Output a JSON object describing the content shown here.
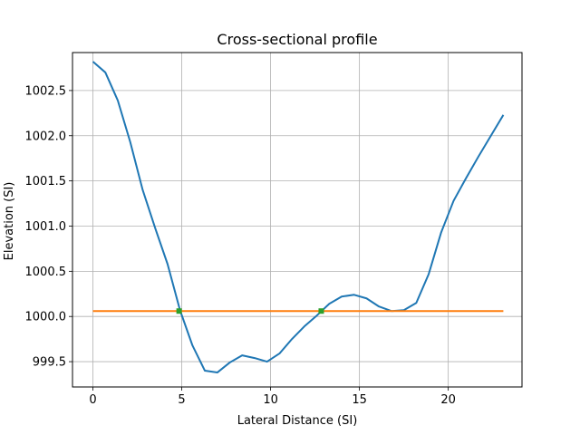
{
  "chart_data": {
    "type": "line",
    "title": "Cross-sectional profile",
    "xlabel": "Lateral Distance (SI)",
    "ylabel": "Elevation (SI)",
    "xlim": [
      -1.15,
      24.15
    ],
    "ylim": [
      999.22,
      1002.92
    ],
    "xticks": [
      0,
      5,
      10,
      15,
      20
    ],
    "xtick_labels": [
      "0",
      "5",
      "10",
      "15",
      "20"
    ],
    "yticks": [
      999.5,
      1000.0,
      1000.5,
      1001.0,
      1001.5,
      1002.0,
      1002.5
    ],
    "ytick_labels": [
      "999.5",
      "1000.0",
      "1000.5",
      "1001.0",
      "1001.5",
      "1002.0",
      "1002.5"
    ],
    "grid": true,
    "series": [
      {
        "color": "#1f77b4",
        "style": "line",
        "x": [
          0,
          0.7,
          1.4,
          2.1,
          2.8,
          3.5,
          4.2,
          4.9,
          5.6,
          6.3,
          7.0,
          7.7,
          8.4,
          9.1,
          9.8,
          10.5,
          11.2,
          11.9,
          12.6,
          13.3,
          14.0,
          14.7,
          15.4,
          16.1,
          16.8,
          17.5,
          18.2,
          18.9,
          19.6,
          20.3,
          21.0,
          21.7,
          22.4,
          23.1
        ],
        "y": [
          1002.82,
          1002.7,
          1002.39,
          1001.93,
          1001.4,
          1000.98,
          1000.58,
          1000.07,
          999.68,
          999.4,
          999.38,
          999.49,
          999.57,
          999.54,
          999.5,
          999.59,
          999.75,
          999.89,
          1000.01,
          1000.14,
          1000.22,
          1000.24,
          1000.2,
          1000.11,
          1000.06,
          1000.07,
          1000.15,
          1000.47,
          1000.93,
          1001.28,
          1001.53,
          1001.77,
          1002.0,
          1002.23
        ]
      },
      {
        "color": "#ff7f0e",
        "style": "line",
        "x": [
          0,
          23.1
        ],
        "y": [
          1000.06,
          1000.06
        ]
      },
      {
        "color": "#2ca02c",
        "style": "markers",
        "x": [
          4.85,
          12.85
        ],
        "y": [
          1000.06,
          1000.06
        ]
      }
    ]
  }
}
